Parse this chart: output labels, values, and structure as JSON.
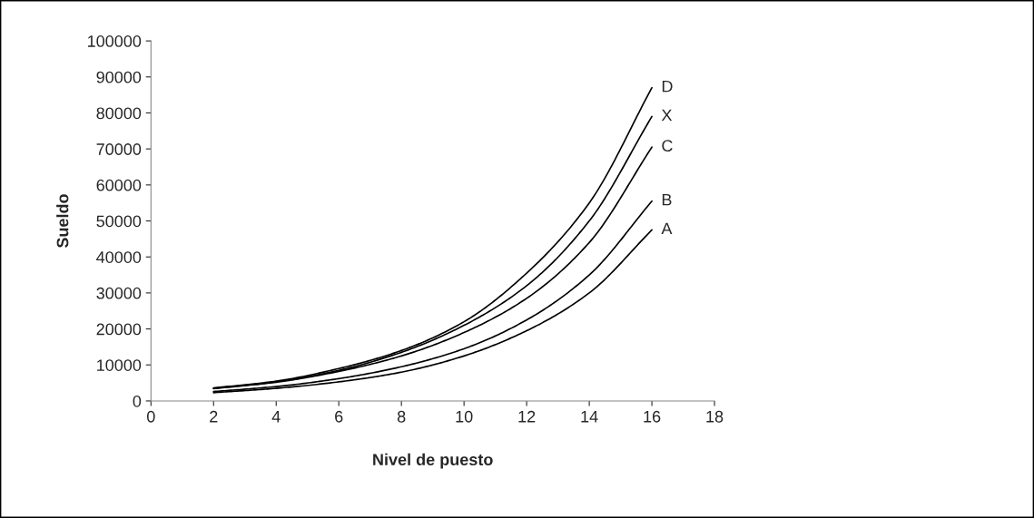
{
  "chart_data": {
    "type": "line",
    "xlabel": "Nivel de puesto",
    "ylabel": "Sueldo",
    "xlim": [
      0,
      18
    ],
    "xticks": [
      0,
      2,
      4,
      6,
      8,
      10,
      12,
      14,
      16,
      18
    ],
    "ylim": [
      0,
      100000
    ],
    "yticks": [
      0,
      10000,
      20000,
      30000,
      40000,
      50000,
      60000,
      70000,
      80000,
      90000,
      100000
    ],
    "x": [
      2,
      4,
      6,
      8,
      10,
      12,
      14,
      16
    ],
    "grid": false,
    "legend": false,
    "marker": "none",
    "line_style": "solid",
    "series": [
      {
        "name": "D",
        "color": "#000000",
        "values": [
          3600,
          5500,
          9000,
          14000,
          22000,
          35500,
          55000,
          87000
        ]
      },
      {
        "name": "X",
        "color": "#000000",
        "values": [
          3500,
          5300,
          8500,
          13500,
          21000,
          32000,
          50000,
          79000
        ]
      },
      {
        "name": "C",
        "color": "#000000",
        "values": [
          3400,
          5200,
          8200,
          12500,
          19000,
          28500,
          44000,
          70500
        ]
      },
      {
        "name": "B",
        "color": "#000000",
        "values": [
          2600,
          4000,
          6200,
          9500,
          14500,
          22500,
          35000,
          55500
        ]
      },
      {
        "name": "A",
        "color": "#000000",
        "values": [
          2300,
          3500,
          5300,
          8000,
          12500,
          19500,
          30000,
          47500
        ]
      }
    ]
  }
}
